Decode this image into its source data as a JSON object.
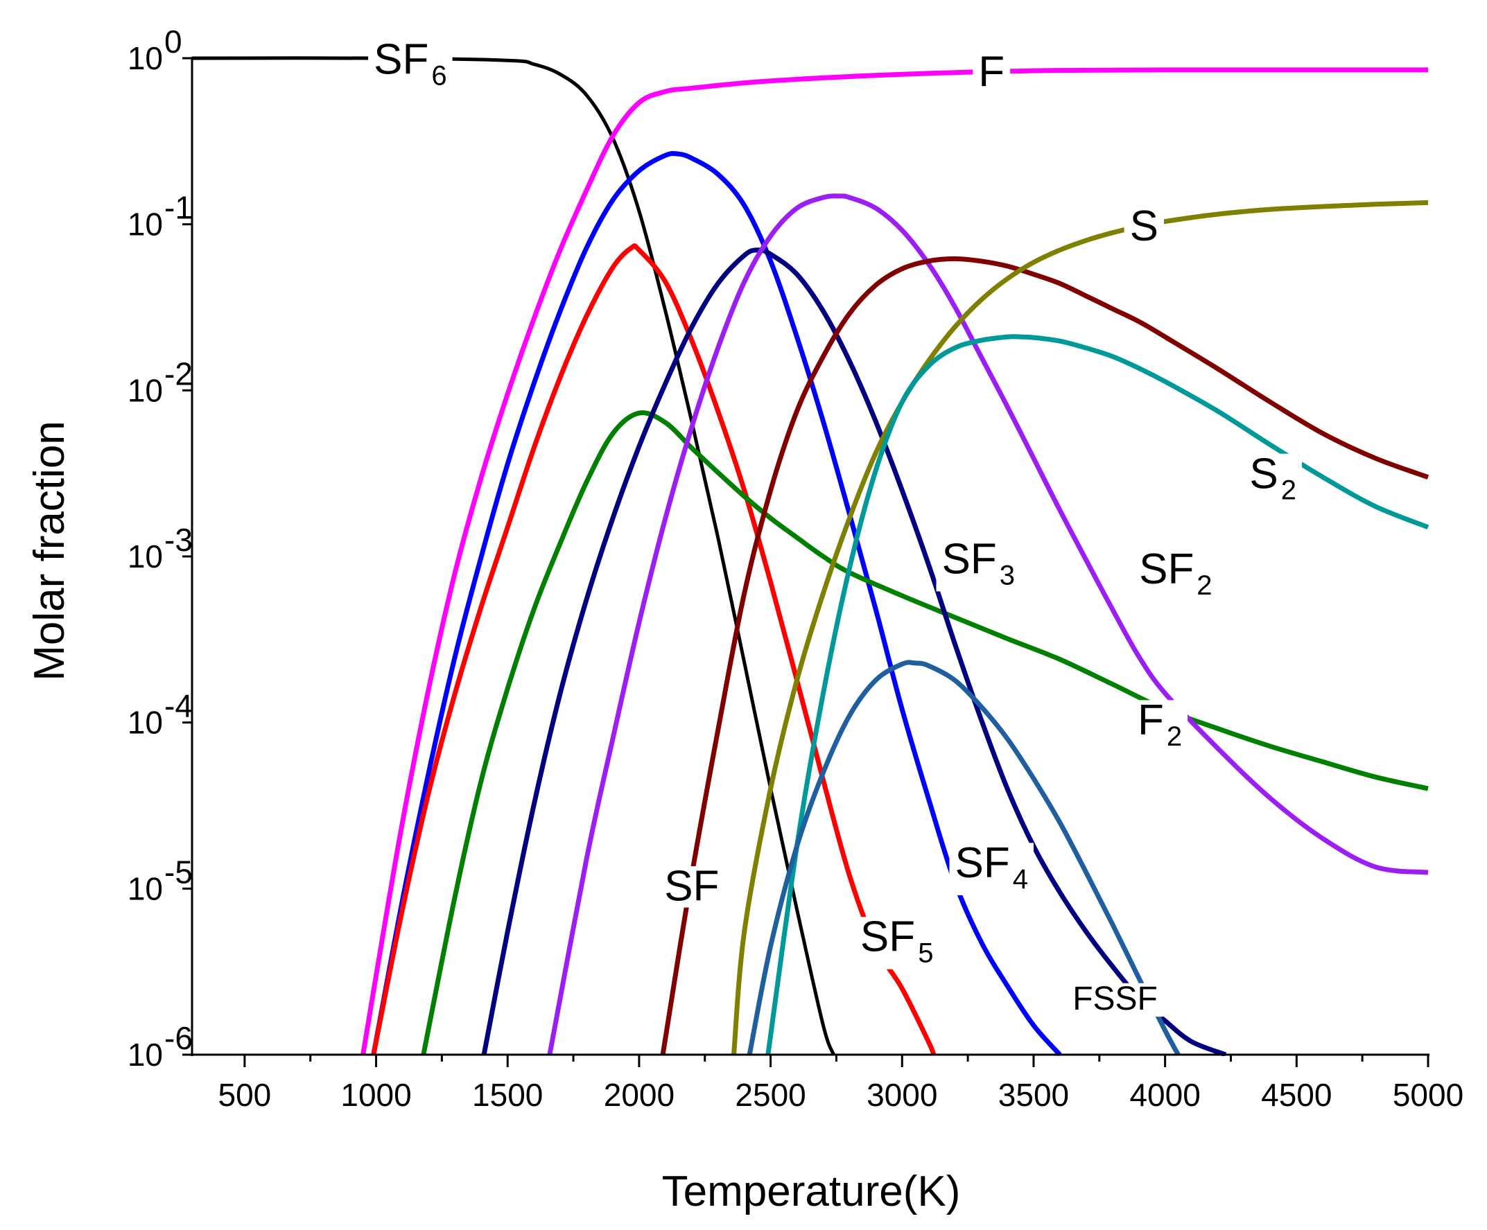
{
  "chart_data": {
    "type": "line",
    "title": "",
    "xlabel": "Temperature(K)",
    "ylabel": "Molar fraction",
    "xscale": "linear",
    "yscale": "log",
    "xlim": [
      300,
      5000
    ],
    "ylim": [
      1e-06,
      1
    ],
    "xticks": [
      {
        "value": 500,
        "label": "500"
      },
      {
        "value": 1000,
        "label": "1000"
      },
      {
        "value": 1500,
        "label": "1500"
      },
      {
        "value": 2000,
        "label": "2000"
      },
      {
        "value": 2500,
        "label": "2500"
      },
      {
        "value": 3000,
        "label": "3000"
      },
      {
        "value": 3500,
        "label": "3500"
      },
      {
        "value": 4000,
        "label": "4000"
      },
      {
        "value": 4500,
        "label": "4500"
      },
      {
        "value": 5000,
        "label": "5000"
      }
    ],
    "yticks": [
      {
        "value": 1,
        "base": "10",
        "exp": "0"
      },
      {
        "value": 0.1,
        "base": "10",
        "exp": "-1"
      },
      {
        "value": 0.01,
        "base": "10",
        "exp": "-2"
      },
      {
        "value": 0.001,
        "base": "10",
        "exp": "-3"
      },
      {
        "value": 0.0001,
        "base": "10",
        "exp": "-4"
      },
      {
        "value": 1e-05,
        "base": "10",
        "exp": "-5"
      },
      {
        "value": 1e-06,
        "base": "10",
        "exp": "-6"
      }
    ],
    "series": [
      {
        "id": "sf6",
        "name": "SF6",
        "color": "#000000",
        "x": [
          300,
          1000,
          1500,
          1600,
          1700,
          1800,
          1900,
          2000,
          2100,
          2200,
          2300,
          2400,
          2500,
          2600,
          2700,
          2740
        ],
        "y": [
          1.0,
          1.0,
          0.97,
          0.92,
          0.8,
          0.6,
          0.33,
          0.12,
          0.03,
          0.0065,
          0.0013,
          0.00023,
          4e-05,
          7.5e-06,
          1.5e-06,
          1e-06
        ]
      },
      {
        "id": "f",
        "name": "F",
        "color": "#ff00ff",
        "x": [
          950,
          1000,
          1100,
          1200,
          1300,
          1400,
          1500,
          1600,
          1700,
          1800,
          1900,
          2000,
          2100,
          2200,
          2500,
          3000,
          3500,
          4000,
          4500,
          5000
        ],
        "y": [
          1e-06,
          3e-06,
          2.5e-05,
          0.00016,
          0.0008,
          0.003,
          0.0095,
          0.027,
          0.07,
          0.16,
          0.34,
          0.54,
          0.63,
          0.66,
          0.73,
          0.8,
          0.84,
          0.85,
          0.85,
          0.85
        ]
      },
      {
        "id": "sf4",
        "name": "SF4",
        "color": "#0000ff",
        "x": [
          990,
          1100,
          1200,
          1300,
          1400,
          1500,
          1600,
          1700,
          1800,
          1900,
          2000,
          2100,
          2150,
          2200,
          2300,
          2400,
          2500,
          2600,
          2700,
          2800,
          2900,
          3000,
          3100,
          3200,
          3300,
          3400,
          3500,
          3600
        ],
        "y": [
          1e-06,
          8.5e-06,
          5e-05,
          0.00025,
          0.001,
          0.0036,
          0.011,
          0.03,
          0.072,
          0.14,
          0.21,
          0.26,
          0.265,
          0.25,
          0.2,
          0.13,
          0.06,
          0.021,
          0.0065,
          0.0018,
          0.00048,
          0.00012,
          3.5e-05,
          1.1e-05,
          4.8e-06,
          2.6e-06,
          1.5e-06,
          1e-06
        ]
      },
      {
        "id": "sf5",
        "name": "SF5",
        "color": "#ff0000",
        "x": [
          990,
          1100,
          1200,
          1300,
          1400,
          1500,
          1600,
          1700,
          1800,
          1900,
          1970,
          2000,
          2100,
          2200,
          2300,
          2400,
          2500,
          2600,
          2700,
          2800,
          2900,
          3000,
          3100,
          3120
        ],
        "y": [
          1e-06,
          7.5e-06,
          3.8e-05,
          0.00015,
          0.0005,
          0.0015,
          0.0045,
          0.012,
          0.028,
          0.055,
          0.072,
          0.07,
          0.045,
          0.02,
          0.0075,
          0.0025,
          0.0007,
          0.00018,
          4.5e-05,
          1.2e-05,
          4.5e-06,
          2.5e-06,
          1.2e-06,
          1e-06
        ]
      },
      {
        "id": "f2",
        "name": "F2",
        "color": "#008000",
        "x": [
          1180,
          1300,
          1400,
          1500,
          1600,
          1700,
          1800,
          1900,
          2000,
          2100,
          2200,
          2300,
          2400,
          2500,
          2600,
          2700,
          2800,
          3000,
          3200,
          3400,
          3600,
          3800,
          4000,
          4200,
          4400,
          4600,
          4800,
          5000
        ],
        "y": [
          1e-06,
          9e-06,
          4.5e-05,
          0.00016,
          0.00048,
          0.0012,
          0.0028,
          0.0055,
          0.0073,
          0.0064,
          0.0045,
          0.0032,
          0.0023,
          0.0017,
          0.0013,
          0.001,
          0.0008,
          0.00058,
          0.00043,
          0.00032,
          0.00024,
          0.00017,
          0.00012,
          9.2e-05,
          7.2e-05,
          5.8e-05,
          4.7e-05,
          4e-05
        ]
      },
      {
        "id": "sf3",
        "name": "SF3",
        "color": "#000080",
        "x": [
          1410,
          1500,
          1600,
          1700,
          1800,
          1900,
          2000,
          2100,
          2200,
          2300,
          2400,
          2450,
          2500,
          2600,
          2700,
          2800,
          2900,
          3000,
          3100,
          3200,
          3300,
          3400,
          3500,
          3600,
          3700,
          3800,
          3900,
          4000,
          4100,
          4230
        ],
        "y": [
          1e-06,
          5.5e-06,
          3.2e-05,
          0.00015,
          0.00055,
          0.0017,
          0.0046,
          0.011,
          0.024,
          0.044,
          0.065,
          0.07,
          0.066,
          0.05,
          0.03,
          0.015,
          0.0065,
          0.0025,
          0.0009,
          0.0003,
          0.000105,
          4e-05,
          1.8e-05,
          9.5e-06,
          5.5e-06,
          3.4e-06,
          2.2e-06,
          1.6e-06,
          1.2e-06,
          1e-06
        ]
      },
      {
        "id": "sf2",
        "name": "SF2",
        "color": "#9b1ff5",
        "x": [
          1660,
          1800,
          1900,
          2000,
          2100,
          2200,
          2300,
          2400,
          2500,
          2600,
          2700,
          2760,
          2800,
          2900,
          3000,
          3100,
          3200,
          3300,
          3400,
          3500,
          3600,
          3700,
          3800,
          3900,
          4000,
          4200,
          4400,
          4600,
          4800,
          5000
        ],
        "y": [
          1e-06,
          1.5e-05,
          8e-05,
          0.0004,
          0.0017,
          0.006,
          0.018,
          0.045,
          0.085,
          0.125,
          0.145,
          0.148,
          0.145,
          0.125,
          0.092,
          0.058,
          0.032,
          0.016,
          0.008,
          0.0039,
          0.0019,
          0.00095,
          0.00048,
          0.00025,
          0.00015,
          7e-05,
          3.5e-05,
          2e-05,
          1.35e-05,
          1.25e-05
        ]
      },
      {
        "id": "sf",
        "name": "SF",
        "color": "#800000",
        "x": [
          2090,
          2200,
          2300,
          2400,
          2500,
          2600,
          2700,
          2800,
          2900,
          3000,
          3100,
          3200,
          3300,
          3400,
          3500,
          3600,
          3700,
          3800,
          3900,
          4000,
          4200,
          4400,
          4600,
          4800,
          5000
        ],
        "y": [
          1e-06,
          1.2e-05,
          9e-05,
          0.0006,
          0.0025,
          0.0075,
          0.016,
          0.029,
          0.043,
          0.054,
          0.06,
          0.062,
          0.06,
          0.056,
          0.05,
          0.044,
          0.037,
          0.031,
          0.026,
          0.021,
          0.0135,
          0.0085,
          0.0055,
          0.0039,
          0.003
        ]
      },
      {
        "id": "s",
        "name": "S",
        "color": "#808000",
        "x": [
          2360,
          2400,
          2500,
          2600,
          2700,
          2800,
          2900,
          3000,
          3100,
          3200,
          3300,
          3400,
          3500,
          3600,
          3700,
          3800,
          3900,
          4000,
          4200,
          4400,
          4600,
          4800,
          5000
        ],
        "y": [
          1e-06,
          5.5e-06,
          4e-05,
          0.00018,
          0.0006,
          0.0017,
          0.0042,
          0.0085,
          0.015,
          0.024,
          0.035,
          0.047,
          0.059,
          0.07,
          0.08,
          0.089,
          0.097,
          0.104,
          0.115,
          0.123,
          0.128,
          0.132,
          0.135
        ]
      },
      {
        "id": "s2",
        "name": "S2",
        "color": "#009999",
        "x": [
          2490,
          2600,
          2700,
          2800,
          2900,
          3000,
          3100,
          3200,
          3300,
          3400,
          3450,
          3500,
          3600,
          3700,
          3800,
          3900,
          4000,
          4200,
          4400,
          4600,
          4800,
          5000
        ],
        "y": [
          1e-06,
          1.8e-05,
          0.00015,
          0.00085,
          0.0033,
          0.0085,
          0.014,
          0.018,
          0.02,
          0.021,
          0.021,
          0.0208,
          0.0198,
          0.018,
          0.016,
          0.0136,
          0.0113,
          0.0075,
          0.0047,
          0.003,
          0.002,
          0.0015
        ]
      },
      {
        "id": "fssf",
        "name": "FSSF",
        "color": "#1f5fa0",
        "x": [
          2420,
          2500,
          2600,
          2700,
          2800,
          2900,
          3000,
          3050,
          3100,
          3200,
          3300,
          3400,
          3500,
          3600,
          3700,
          3800,
          3900,
          4000,
          4050
        ],
        "y": [
          1e-06,
          4.5e-06,
          1.8e-05,
          5e-05,
          0.00011,
          0.00018,
          0.000225,
          0.000228,
          0.00022,
          0.00018,
          0.000125,
          8e-05,
          4.6e-05,
          2.5e-05,
          1.25e-05,
          6.1e-06,
          2.9e-06,
          1.4e-06,
          1e-06
        ]
      }
    ],
    "annotations": [
      {
        "series": "sf6",
        "text": "SF",
        "sub": "6",
        "x": 1130,
        "y": 1.0,
        "small": false
      },
      {
        "series": "f",
        "text": "F",
        "sub": "",
        "x": 3340,
        "y": 0.84,
        "small": false
      },
      {
        "series": "s",
        "text": "S",
        "sub": "",
        "x": 3920,
        "y": 0.099,
        "small": false
      },
      {
        "series": "s2",
        "text": "S",
        "sub": "2",
        "x": 4410,
        "y": 0.0032,
        "small": false
      },
      {
        "series": "sf3",
        "text": "SF",
        "sub": "3",
        "x": 3290,
        "y": 0.00098,
        "small": false
      },
      {
        "series": "sf2",
        "text": "SF",
        "sub": "2",
        "x": 4040,
        "y": 0.00085,
        "small": false
      },
      {
        "series": "f2",
        "text": "F",
        "sub": "2",
        "x": 3980,
        "y": 0.000105,
        "small": false
      },
      {
        "series": "sf",
        "text": "SF",
        "sub": "",
        "x": 2200,
        "y": 1.05e-05,
        "small": false
      },
      {
        "series": "sf5",
        "text": "SF",
        "sub": "5",
        "x": 2980,
        "y": 5.2e-06,
        "small": false
      },
      {
        "series": "sf4",
        "text": "SF",
        "sub": "4",
        "x": 3340,
        "y": 1.45e-05,
        "small": false
      },
      {
        "series": "fssf",
        "text": "FSSF",
        "sub": "",
        "x": 3810,
        "y": 2.2e-06,
        "small": true
      }
    ]
  }
}
